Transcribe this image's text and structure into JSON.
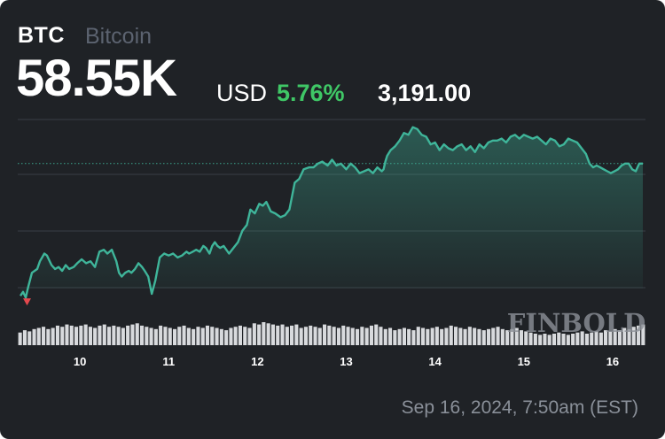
{
  "header": {
    "ticker": "BTC",
    "name": "Bitcoin",
    "price": "58.55K",
    "currency": "USD",
    "change_percent": "5.76%",
    "change_value": "3,191.00"
  },
  "watermark": "FINBOLD",
  "timestamp": "Sep 16, 2024, 7:50am (EST)",
  "colors": {
    "background": "#1f2226",
    "line": "#3fb59a",
    "positive": "#3fc766",
    "start_marker": "#e5484d",
    "grid": "#3a3f45",
    "reference": "#3fb59a",
    "volume": "#d8dadd",
    "axis_text": "#ffffff"
  },
  "chart_data": {
    "type": "area",
    "x_tick_labels": [
      "10",
      "11",
      "12",
      "13",
      "14",
      "15",
      "16"
    ],
    "x_tick_values": [
      10,
      11,
      12,
      13,
      14,
      15,
      16
    ],
    "xlim": [
      9.3,
      16.37
    ],
    "ylim": [
      54850,
      59700
    ],
    "reference_line": 58550,
    "y_axis_labels_shown": false,
    "grid": "horizontal",
    "legend": "none",
    "series": [
      {
        "x": [
          9.33,
          9.36,
          9.39,
          9.42,
          9.46,
          9.52,
          9.55,
          9.6,
          9.63,
          9.68,
          9.72,
          9.76,
          9.8,
          9.84,
          9.88,
          9.93,
          9.97,
          10.02,
          10.07,
          10.12,
          10.17,
          10.22,
          10.27,
          10.31,
          10.36,
          10.41,
          10.44,
          10.47,
          10.51,
          10.55,
          10.58,
          10.62,
          10.66,
          10.7,
          10.73,
          10.77,
          10.81,
          10.85,
          10.9,
          10.95,
          11.0,
          11.05,
          11.1,
          11.15,
          11.2,
          11.23,
          11.27,
          11.31,
          11.35,
          11.39,
          11.42,
          11.46,
          11.49,
          11.52,
          11.55,
          11.58,
          11.62,
          11.68,
          11.73,
          11.78,
          11.83,
          11.88,
          11.92,
          11.97,
          12.02,
          12.06,
          12.1,
          12.15,
          12.2,
          12.26,
          12.31,
          12.36,
          12.42,
          12.47,
          12.52,
          12.58,
          12.63,
          12.68,
          12.73,
          12.79,
          12.84,
          12.89,
          12.94,
          13.0,
          13.05,
          13.1,
          13.15,
          13.2,
          13.25,
          13.3,
          13.35,
          13.4,
          13.42,
          13.44,
          13.46,
          13.5,
          13.55,
          13.6,
          13.65,
          13.7,
          13.75,
          13.8,
          13.85,
          13.9,
          13.95,
          14.0,
          14.05,
          14.1,
          14.15,
          14.2,
          14.25,
          14.3,
          14.35,
          14.4,
          14.45,
          14.5,
          14.55,
          14.6,
          14.65,
          14.7,
          14.75,
          14.8,
          14.85,
          14.9,
          14.95,
          15.0,
          15.05,
          15.1,
          15.15,
          15.2,
          15.25,
          15.3,
          15.35,
          15.4,
          15.45,
          15.5,
          15.55,
          15.6,
          15.65,
          15.7,
          15.74,
          15.78,
          15.82,
          15.86,
          15.9,
          15.94,
          15.98,
          16.02,
          16.06,
          16.1,
          16.14,
          16.18,
          16.22,
          16.26,
          16.3,
          16.34
        ],
        "y": [
          55100,
          55200,
          55050,
          55350,
          55700,
          55800,
          56000,
          56200,
          56150,
          55900,
          55800,
          55850,
          55750,
          55900,
          55800,
          55850,
          55950,
          56050,
          55950,
          56000,
          55850,
          56250,
          56300,
          56200,
          56300,
          56000,
          55700,
          55600,
          55700,
          55750,
          55700,
          55800,
          55950,
          55850,
          55750,
          55600,
          55150,
          55500,
          56100,
          56200,
          56150,
          56200,
          56100,
          56150,
          56250,
          56200,
          56250,
          56300,
          56250,
          56400,
          56350,
          56200,
          56400,
          56500,
          56400,
          56350,
          56400,
          56200,
          56350,
          56500,
          56800,
          56950,
          57350,
          57250,
          57500,
          57450,
          57550,
          57300,
          57250,
          57150,
          57200,
          57350,
          58050,
          58150,
          58400,
          58450,
          58450,
          58550,
          58600,
          58500,
          58650,
          58500,
          58550,
          58400,
          58550,
          58450,
          58300,
          58350,
          58400,
          58300,
          58450,
          58350,
          58400,
          58600,
          58750,
          58900,
          59000,
          59150,
          59350,
          59300,
          59500,
          59450,
          59300,
          59250,
          59050,
          59100,
          58900,
          59050,
          58950,
          58900,
          59000,
          59050,
          58900,
          59000,
          58850,
          59050,
          58950,
          59100,
          59150,
          59150,
          59200,
          59100,
          59250,
          59300,
          59200,
          59300,
          59250,
          59200,
          59250,
          59150,
          59050,
          59200,
          59150,
          59000,
          59050,
          59200,
          59150,
          59100,
          58950,
          58800,
          58550,
          58450,
          58500,
          58450,
          58400,
          58350,
          58300,
          58350,
          58400,
          58500,
          58550,
          58550,
          58400,
          58350,
          58550,
          58550
        ]
      }
    ],
    "volume": [
      0.55,
      0.65,
      0.6,
      0.7,
      0.75,
      0.8,
      0.7,
      0.75,
      0.85,
      0.8,
      0.9,
      0.85,
      0.8,
      0.85,
      0.9,
      0.8,
      0.75,
      0.85,
      0.9,
      0.8,
      0.85,
      0.8,
      0.75,
      0.85,
      0.9,
      0.95,
      0.85,
      0.8,
      0.75,
      0.7,
      0.85,
      0.8,
      0.75,
      0.7,
      0.8,
      0.85,
      0.75,
      0.7,
      0.8,
      0.75,
      0.85,
      0.8,
      0.75,
      0.7,
      0.65,
      0.75,
      0.8,
      0.85,
      0.8,
      0.75,
      0.95,
      0.9,
      1.0,
      0.95,
      0.9,
      0.85,
      0.9,
      0.8,
      0.85,
      0.9,
      0.75,
      0.8,
      0.85,
      0.8,
      0.75,
      0.9,
      0.85,
      0.8,
      0.75,
      0.85,
      0.8,
      0.75,
      0.7,
      0.8,
      0.75,
      0.85,
      0.9,
      0.8,
      0.7,
      0.75,
      0.65,
      0.7,
      0.75,
      0.7,
      0.65,
      0.8,
      0.75,
      0.7,
      0.75,
      0.8,
      0.7,
      0.75,
      0.85,
      0.8,
      0.75,
      0.7,
      0.8,
      0.75,
      0.7,
      0.65,
      0.7,
      0.75,
      0.8,
      0.7,
      0.65,
      0.7,
      0.75,
      0.65,
      0.6,
      0.55,
      0.5,
      0.45,
      0.5,
      0.45,
      0.5,
      0.55,
      0.5,
      0.45,
      0.5,
      0.55,
      0.6,
      0.5,
      0.55,
      0.6,
      0.55,
      0.65,
      0.6,
      0.7,
      0.65,
      0.75,
      0.7,
      0.8,
      0.85,
      0.9
    ]
  }
}
